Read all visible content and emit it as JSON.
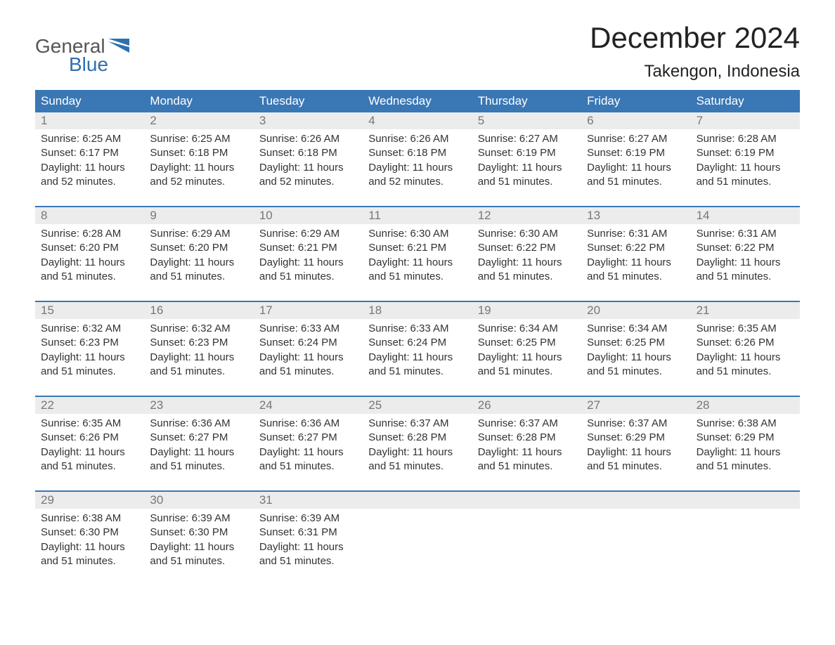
{
  "logo": {
    "word1": "General",
    "word2": "Blue"
  },
  "title": "December 2024",
  "location": "Takengon, Indonesia",
  "colors": {
    "header_bg": "#3a77b5",
    "header_text": "#ffffff",
    "daynum_bg": "#ececec",
    "daynum_text": "#777777",
    "body_text": "#333333",
    "logo_gray": "#555555",
    "logo_blue": "#2f6fb0",
    "separator": "#3a77b5"
  },
  "day_names": [
    "Sunday",
    "Monday",
    "Tuesday",
    "Wednesday",
    "Thursday",
    "Friday",
    "Saturday"
  ],
  "weeks": [
    [
      {
        "n": "1",
        "sr": "6:25 AM",
        "ss": "6:17 PM",
        "dl": "11 hours and 52 minutes."
      },
      {
        "n": "2",
        "sr": "6:25 AM",
        "ss": "6:18 PM",
        "dl": "11 hours and 52 minutes."
      },
      {
        "n": "3",
        "sr": "6:26 AM",
        "ss": "6:18 PM",
        "dl": "11 hours and 52 minutes."
      },
      {
        "n": "4",
        "sr": "6:26 AM",
        "ss": "6:18 PM",
        "dl": "11 hours and 52 minutes."
      },
      {
        "n": "5",
        "sr": "6:27 AM",
        "ss": "6:19 PM",
        "dl": "11 hours and 51 minutes."
      },
      {
        "n": "6",
        "sr": "6:27 AM",
        "ss": "6:19 PM",
        "dl": "11 hours and 51 minutes."
      },
      {
        "n": "7",
        "sr": "6:28 AM",
        "ss": "6:19 PM",
        "dl": "11 hours and 51 minutes."
      }
    ],
    [
      {
        "n": "8",
        "sr": "6:28 AM",
        "ss": "6:20 PM",
        "dl": "11 hours and 51 minutes."
      },
      {
        "n": "9",
        "sr": "6:29 AM",
        "ss": "6:20 PM",
        "dl": "11 hours and 51 minutes."
      },
      {
        "n": "10",
        "sr": "6:29 AM",
        "ss": "6:21 PM",
        "dl": "11 hours and 51 minutes."
      },
      {
        "n": "11",
        "sr": "6:30 AM",
        "ss": "6:21 PM",
        "dl": "11 hours and 51 minutes."
      },
      {
        "n": "12",
        "sr": "6:30 AM",
        "ss": "6:22 PM",
        "dl": "11 hours and 51 minutes."
      },
      {
        "n": "13",
        "sr": "6:31 AM",
        "ss": "6:22 PM",
        "dl": "11 hours and 51 minutes."
      },
      {
        "n": "14",
        "sr": "6:31 AM",
        "ss": "6:22 PM",
        "dl": "11 hours and 51 minutes."
      }
    ],
    [
      {
        "n": "15",
        "sr": "6:32 AM",
        "ss": "6:23 PM",
        "dl": "11 hours and 51 minutes."
      },
      {
        "n": "16",
        "sr": "6:32 AM",
        "ss": "6:23 PM",
        "dl": "11 hours and 51 minutes."
      },
      {
        "n": "17",
        "sr": "6:33 AM",
        "ss": "6:24 PM",
        "dl": "11 hours and 51 minutes."
      },
      {
        "n": "18",
        "sr": "6:33 AM",
        "ss": "6:24 PM",
        "dl": "11 hours and 51 minutes."
      },
      {
        "n": "19",
        "sr": "6:34 AM",
        "ss": "6:25 PM",
        "dl": "11 hours and 51 minutes."
      },
      {
        "n": "20",
        "sr": "6:34 AM",
        "ss": "6:25 PM",
        "dl": "11 hours and 51 minutes."
      },
      {
        "n": "21",
        "sr": "6:35 AM",
        "ss": "6:26 PM",
        "dl": "11 hours and 51 minutes."
      }
    ],
    [
      {
        "n": "22",
        "sr": "6:35 AM",
        "ss": "6:26 PM",
        "dl": "11 hours and 51 minutes."
      },
      {
        "n": "23",
        "sr": "6:36 AM",
        "ss": "6:27 PM",
        "dl": "11 hours and 51 minutes."
      },
      {
        "n": "24",
        "sr": "6:36 AM",
        "ss": "6:27 PM",
        "dl": "11 hours and 51 minutes."
      },
      {
        "n": "25",
        "sr": "6:37 AM",
        "ss": "6:28 PM",
        "dl": "11 hours and 51 minutes."
      },
      {
        "n": "26",
        "sr": "6:37 AM",
        "ss": "6:28 PM",
        "dl": "11 hours and 51 minutes."
      },
      {
        "n": "27",
        "sr": "6:37 AM",
        "ss": "6:29 PM",
        "dl": "11 hours and 51 minutes."
      },
      {
        "n": "28",
        "sr": "6:38 AM",
        "ss": "6:29 PM",
        "dl": "11 hours and 51 minutes."
      }
    ],
    [
      {
        "n": "29",
        "sr": "6:38 AM",
        "ss": "6:30 PM",
        "dl": "11 hours and 51 minutes."
      },
      {
        "n": "30",
        "sr": "6:39 AM",
        "ss": "6:30 PM",
        "dl": "11 hours and 51 minutes."
      },
      {
        "n": "31",
        "sr": "6:39 AM",
        "ss": "6:31 PM",
        "dl": "11 hours and 51 minutes."
      },
      null,
      null,
      null,
      null
    ]
  ],
  "labels": {
    "sunrise": "Sunrise:",
    "sunset": "Sunset:",
    "daylight": "Daylight:"
  }
}
